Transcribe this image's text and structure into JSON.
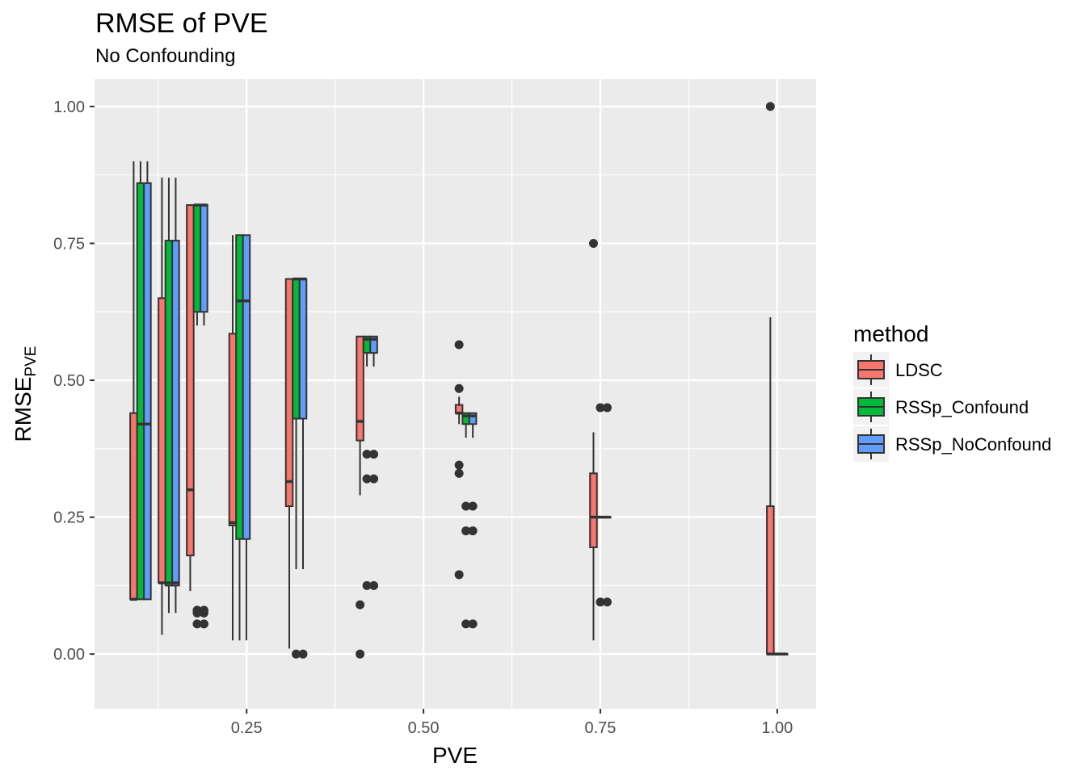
{
  "chart_data": {
    "type": "boxplot",
    "title": "RMSE of PVE",
    "subtitle": "No Confounding",
    "xlabel": "PVE",
    "ylabel": {
      "main": "RMSE",
      "sub": "PVE"
    },
    "xlim": [
      0.035,
      1.055
    ],
    "ylim": [
      -0.1,
      1.05
    ],
    "x_ticks": [
      {
        "value": 0.25,
        "label": "0.25"
      },
      {
        "value": 0.5,
        "label": "0.50"
      },
      {
        "value": 0.75,
        "label": "0.75"
      },
      {
        "value": 1.0,
        "label": "1.00"
      }
    ],
    "y_ticks": [
      {
        "value": 0.0,
        "label": "0.00"
      },
      {
        "value": 0.25,
        "label": "0.25"
      },
      {
        "value": 0.5,
        "label": "0.50"
      },
      {
        "value": 0.75,
        "label": "0.75"
      },
      {
        "value": 1.0,
        "label": "1.00"
      }
    ],
    "grid": true,
    "legend_position": "right",
    "legend_title": "method",
    "series": [
      {
        "name": "LDSC",
        "color": "#f8766d"
      },
      {
        "name": "RSSp_Confound",
        "color": "#00ba38"
      },
      {
        "name": "RSSp_NoConfound",
        "color": "#619cff"
      }
    ],
    "groups": [
      {
        "pve": 0.1,
        "boxes": [
          {
            "series": "LDSC",
            "min": 0.1,
            "q1": 0.1,
            "median": 0.1,
            "q3": 0.44,
            "max": 0.9,
            "outliers": []
          },
          {
            "series": "RSSp_Confound",
            "min": 0.1,
            "q1": 0.1,
            "median": 0.42,
            "q3": 0.86,
            "max": 0.9,
            "outliers": []
          },
          {
            "series": "RSSp_NoConfound",
            "min": 0.1,
            "q1": 0.1,
            "median": 0.42,
            "q3": 0.86,
            "max": 0.9,
            "outliers": []
          }
        ]
      },
      {
        "pve": 0.14,
        "boxes": [
          {
            "series": "LDSC",
            "min": 0.035,
            "q1": 0.13,
            "median": 0.13,
            "q3": 0.65,
            "max": 0.87,
            "outliers": []
          },
          {
            "series": "RSSp_Confound",
            "min": 0.075,
            "q1": 0.125,
            "median": 0.13,
            "q3": 0.755,
            "max": 0.87,
            "outliers": []
          },
          {
            "series": "RSSp_NoConfound",
            "min": 0.075,
            "q1": 0.125,
            "median": 0.13,
            "q3": 0.755,
            "max": 0.87,
            "outliers": []
          }
        ]
      },
      {
        "pve": 0.18,
        "boxes": [
          {
            "series": "LDSC",
            "min": 0.115,
            "q1": 0.18,
            "median": 0.3,
            "q3": 0.82,
            "max": 0.82,
            "outliers": []
          },
          {
            "series": "RSSp_Confound",
            "min": 0.6,
            "q1": 0.625,
            "median": 0.82,
            "q3": 0.82,
            "max": 0.82,
            "outliers": [
              0.055,
              0.075,
              0.08
            ]
          },
          {
            "series": "RSSp_NoConfound",
            "min": 0.6,
            "q1": 0.625,
            "median": 0.82,
            "q3": 0.82,
            "max": 0.82,
            "outliers": [
              0.055,
              0.075,
              0.08
            ]
          }
        ]
      },
      {
        "pve": 0.24,
        "boxes": [
          {
            "series": "LDSC",
            "min": 0.025,
            "q1": 0.235,
            "median": 0.24,
            "q3": 0.585,
            "max": 0.765,
            "outliers": []
          },
          {
            "series": "RSSp_Confound",
            "min": 0.025,
            "q1": 0.21,
            "median": 0.645,
            "q3": 0.765,
            "max": 0.765,
            "outliers": []
          },
          {
            "series": "RSSp_NoConfound",
            "min": 0.025,
            "q1": 0.21,
            "median": 0.645,
            "q3": 0.765,
            "max": 0.765,
            "outliers": []
          }
        ]
      },
      {
        "pve": 0.32,
        "boxes": [
          {
            "series": "LDSC",
            "min": 0.01,
            "q1": 0.27,
            "median": 0.315,
            "q3": 0.685,
            "max": 0.685,
            "outliers": []
          },
          {
            "series": "RSSp_Confound",
            "min": 0.155,
            "q1": 0.43,
            "median": 0.685,
            "q3": 0.685,
            "max": 0.685,
            "outliers": [
              0.0
            ]
          },
          {
            "series": "RSSp_NoConfound",
            "min": 0.155,
            "q1": 0.43,
            "median": 0.685,
            "q3": 0.685,
            "max": 0.685,
            "outliers": [
              0.0
            ]
          }
        ]
      },
      {
        "pve": 0.42,
        "boxes": [
          {
            "series": "LDSC",
            "min": 0.29,
            "q1": 0.39,
            "median": 0.425,
            "q3": 0.58,
            "max": 0.58,
            "outliers": [
              0.0,
              0.09
            ]
          },
          {
            "series": "RSSp_Confound",
            "min": 0.525,
            "q1": 0.55,
            "median": 0.575,
            "q3": 0.58,
            "max": 0.58,
            "outliers": [
              0.125,
              0.32,
              0.365
            ]
          },
          {
            "series": "RSSp_NoConfound",
            "min": 0.525,
            "q1": 0.55,
            "median": 0.575,
            "q3": 0.58,
            "max": 0.58,
            "outliers": [
              0.125,
              0.32,
              0.365
            ]
          }
        ]
      },
      {
        "pve": 0.56,
        "boxes": [
          {
            "series": "LDSC",
            "min": 0.42,
            "q1": 0.44,
            "median": 0.44,
            "q3": 0.455,
            "max": 0.47,
            "outliers": [
              0.145,
              0.33,
              0.345,
              0.485,
              0.565
            ]
          },
          {
            "series": "RSSp_Confound",
            "min": 0.395,
            "q1": 0.42,
            "median": 0.435,
            "q3": 0.44,
            "max": 0.44,
            "outliers": [
              0.055,
              0.225,
              0.27
            ]
          },
          {
            "series": "RSSp_NoConfound",
            "min": 0.395,
            "q1": 0.42,
            "median": 0.435,
            "q3": 0.44,
            "max": 0.44,
            "outliers": [
              0.055,
              0.225,
              0.27
            ]
          }
        ]
      },
      {
        "pve": 0.75,
        "boxes": [
          {
            "series": "LDSC",
            "min": 0.025,
            "q1": 0.195,
            "median": 0.25,
            "q3": 0.33,
            "max": 0.405,
            "outliers": [
              0.75
            ]
          },
          {
            "series": "RSSp_Confound",
            "min": 0.25,
            "q1": 0.25,
            "median": 0.25,
            "q3": 0.25,
            "max": 0.25,
            "outliers": [
              0.095,
              0.45
            ]
          },
          {
            "series": "RSSp_NoConfound",
            "min": 0.25,
            "q1": 0.25,
            "median": 0.25,
            "q3": 0.25,
            "max": 0.25,
            "outliers": [
              0.095,
              0.45
            ]
          }
        ]
      },
      {
        "pve": 1.0,
        "boxes": [
          {
            "series": "LDSC",
            "min": 0.0,
            "q1": 0.0,
            "median": 0.0,
            "q3": 0.27,
            "max": 0.615,
            "outliers": [
              1.0
            ]
          },
          {
            "series": "RSSp_Confound",
            "min": 0.0,
            "q1": 0.0,
            "median": 0.0,
            "q3": 0.0,
            "max": 0.0,
            "outliers": []
          },
          {
            "series": "RSSp_NoConfound",
            "min": 0.0,
            "q1": 0.0,
            "median": 0.0,
            "q3": 0.0,
            "max": 0.0,
            "outliers": []
          }
        ]
      }
    ]
  }
}
